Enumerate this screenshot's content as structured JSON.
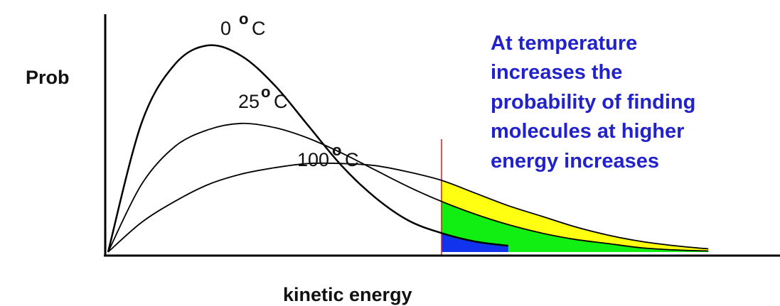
{
  "chart_data": {
    "type": "line",
    "title": "",
    "xlabel": "kinetic energy",
    "ylabel": "Prob",
    "ylim": [
      0,
      1
    ],
    "grid": false,
    "legend": "none",
    "series": [
      {
        "name": "0",
        "unit": "C",
        "color": "#000000",
        "x": [
          0.0,
          0.05,
          0.1,
          0.15,
          0.2,
          0.25,
          0.3,
          0.35,
          0.4,
          0.45,
          0.5,
          0.55,
          0.6
        ],
        "values": [
          0.0,
          0.61,
          0.89,
          0.98,
          0.93,
          0.79,
          0.6,
          0.41,
          0.26,
          0.15,
          0.09,
          0.05,
          0.03
        ]
      },
      {
        "name": "25",
        "unit": "C",
        "color": "#000000",
        "x": [
          0.0,
          0.05,
          0.1,
          0.15,
          0.2,
          0.25,
          0.3,
          0.35,
          0.4,
          0.45,
          0.5,
          0.55,
          0.6,
          0.65,
          0.7,
          0.75,
          0.8,
          0.85,
          0.9
        ],
        "values": [
          0.0,
          0.32,
          0.5,
          0.58,
          0.61,
          0.59,
          0.54,
          0.47,
          0.39,
          0.31,
          0.24,
          0.18,
          0.13,
          0.09,
          0.06,
          0.04,
          0.02,
          0.01,
          0.005
        ]
      },
      {
        "name": "100",
        "unit": "C",
        "color": "#000000",
        "x": [
          0.0,
          0.05,
          0.1,
          0.15,
          0.2,
          0.25,
          0.3,
          0.35,
          0.4,
          0.45,
          0.5,
          0.55,
          0.6,
          0.65,
          0.7,
          0.75,
          0.8,
          0.85,
          0.9
        ],
        "values": [
          0.0,
          0.14,
          0.24,
          0.32,
          0.37,
          0.4,
          0.42,
          0.42,
          0.41,
          0.38,
          0.34,
          0.28,
          0.22,
          0.17,
          0.12,
          0.08,
          0.05,
          0.03,
          0.015
        ]
      }
    ],
    "threshold": {
      "x": 0.5,
      "color": "#ee1111"
    },
    "shaded_regions_colors": [
      "#1133ee",
      "#11ee11",
      "#ffff11"
    ],
    "annotation": [
      "At temperature",
      "increases the",
      "probability of finding",
      "molecules at higher",
      "energy increases"
    ],
    "annotation_color": "#2222cc"
  }
}
